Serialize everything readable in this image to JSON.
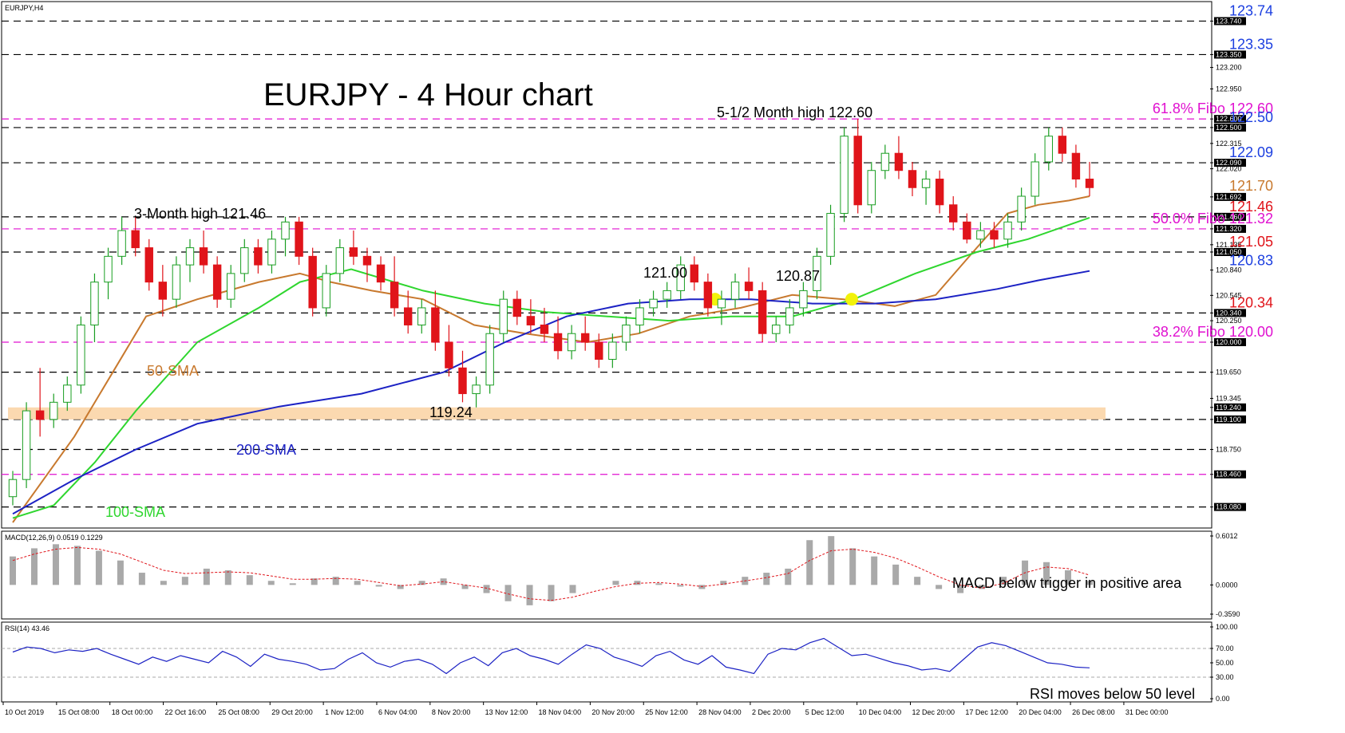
{
  "symbol_label": "EURJPY,H4",
  "title": "EURJPY - 4 Hour chart",
  "colors": {
    "bull": "#1a9e22",
    "bear": "#e0141a",
    "sma50": "#c8792e",
    "sma100": "#2fd62f",
    "sma200": "#1c22c4",
    "fibo": "#e010d0",
    "support_zone": "#fbd9b0",
    "red_label": "#e0141a",
    "blue_label": "#1c3fe0",
    "magenta_label": "#e010d0",
    "brown_label": "#c8792e",
    "highlight": "#f2f20a"
  },
  "chart_data": [
    {
      "type": "candlestick",
      "panel": "price",
      "ylim": [
        117.9,
        123.8
      ],
      "axis_ticks": [
        "123.740",
        "123.350",
        "123.200",
        "122.950",
        "122.600",
        "122.500",
        "122.315",
        "122.090",
        "122.020",
        "121.692",
        "121.460",
        "121.320",
        "121.135",
        "121.050",
        "120.840",
        "120.545",
        "120.340",
        "120.250",
        "120.000",
        "119.650",
        "119.345",
        "119.240",
        "119.100",
        "118.750",
        "118.460",
        "118.080"
      ],
      "horizontal_levels": [
        {
          "value": 123.74,
          "label": "123.74",
          "style": "black-dashed",
          "label_color": "blue"
        },
        {
          "value": 123.35,
          "label": "123.35",
          "style": "black-dashed",
          "label_color": "blue"
        },
        {
          "value": 122.6,
          "label": "61.8% Fibo 122.60",
          "style": "fibo-dashed",
          "label_color": "magenta"
        },
        {
          "value": 122.5,
          "label": "122.50",
          "style": "black-dashed",
          "label_color": "blue"
        },
        {
          "value": 122.09,
          "label": "122.09",
          "style": "black-dashed",
          "label_color": "blue"
        },
        {
          "value": 121.7,
          "label": "121.70",
          "style": "none",
          "label_color": "brown"
        },
        {
          "value": 121.46,
          "label": "121.46",
          "style": "black-dashed",
          "label_color": "red"
        },
        {
          "value": 121.32,
          "label": "50.0% Fibo 121.32",
          "style": "fibo-dashed",
          "label_color": "magenta"
        },
        {
          "value": 121.05,
          "label": "121.05",
          "style": "black-dashed",
          "label_color": "red"
        },
        {
          "value": 120.83,
          "label": "120.83",
          "style": "none",
          "label_color": "blue"
        },
        {
          "value": 120.34,
          "label": "120.34",
          "style": "black-dashed",
          "label_color": "red"
        },
        {
          "value": 120.0,
          "label": "38.2% Fibo 120.00",
          "style": "fibo-dashed",
          "label_color": "magenta"
        },
        {
          "value": 119.65,
          "label": "",
          "style": "black-dashed",
          "label_color": "none"
        },
        {
          "value": 119.1,
          "label": "",
          "style": "black-dashed",
          "label_color": "none"
        },
        {
          "value": 118.75,
          "label": "",
          "style": "black-dashed",
          "label_color": "none"
        },
        {
          "value": 118.46,
          "label": "",
          "style": "fibo-dashed",
          "label_color": "none"
        },
        {
          "value": 118.08,
          "label": "",
          "style": "black-dashed",
          "label_color": "none"
        }
      ],
      "support_zone": [
        119.1,
        119.24
      ],
      "highlight_labels": [
        "122.600",
        "122.500",
        "122.090",
        "121.692",
        "121.460",
        "121.320",
        "121.050",
        "120.340",
        "120.000",
        "119.240",
        "119.100",
        "118.460",
        "118.080",
        "123.740",
        "123.350"
      ],
      "annotations": [
        {
          "text": "5-1/2 Month high 122.60"
        },
        {
          "text": "3-Month high 121.46"
        },
        {
          "text": "121.00"
        },
        {
          "text": "120.87"
        },
        {
          "text": "119.24"
        },
        {
          "text": "50-SMA"
        },
        {
          "text": "100-SMA"
        },
        {
          "text": "200-SMA"
        }
      ],
      "sma_anchors": {
        "sma50": [
          [
            0,
            117.9
          ],
          [
            6,
            118.9
          ],
          [
            10,
            119.7
          ],
          [
            13,
            120.3
          ],
          [
            18,
            120.5
          ],
          [
            24,
            120.7
          ],
          [
            28,
            120.8
          ],
          [
            31,
            120.7
          ],
          [
            35,
            120.6
          ],
          [
            40,
            120.5
          ],
          [
            45,
            120.2
          ],
          [
            50,
            120.1
          ],
          [
            56,
            120.0
          ],
          [
            61,
            120.1
          ],
          [
            66,
            120.3
          ],
          [
            71,
            120.4
          ],
          [
            76,
            120.55
          ],
          [
            81,
            120.5
          ],
          [
            86,
            120.42
          ],
          [
            90,
            120.55
          ],
          [
            94,
            121.1
          ],
          [
            97,
            121.5
          ],
          [
            100,
            121.6
          ],
          [
            103,
            121.65
          ],
          [
            105,
            121.7
          ]
        ],
        "sma100": [
          [
            0,
            117.95
          ],
          [
            4,
            118.1
          ],
          [
            8,
            118.6
          ],
          [
            12,
            119.2
          ],
          [
            18,
            120.0
          ],
          [
            24,
            120.4
          ],
          [
            28,
            120.7
          ],
          [
            33,
            120.85
          ],
          [
            40,
            120.6
          ],
          [
            46,
            120.45
          ],
          [
            52,
            120.35
          ],
          [
            58,
            120.3
          ],
          [
            64,
            120.25
          ],
          [
            70,
            120.3
          ],
          [
            76,
            120.3
          ],
          [
            82,
            120.5
          ],
          [
            88,
            120.8
          ],
          [
            94,
            121.05
          ],
          [
            99,
            121.2
          ],
          [
            105,
            121.45
          ]
        ],
        "sma200": [
          [
            0,
            118.0
          ],
          [
            6,
            118.4
          ],
          [
            12,
            118.75
          ],
          [
            18,
            119.05
          ],
          [
            26,
            119.25
          ],
          [
            34,
            119.4
          ],
          [
            42,
            119.65
          ],
          [
            48,
            120.0
          ],
          [
            54,
            120.3
          ],
          [
            60,
            120.45
          ],
          [
            66,
            120.5
          ],
          [
            72,
            120.5
          ],
          [
            78,
            120.45
          ],
          [
            84,
            120.45
          ],
          [
            90,
            120.5
          ],
          [
            96,
            120.62
          ],
          [
            100,
            120.72
          ],
          [
            105,
            120.83
          ]
        ]
      },
      "ohlc": [
        [
          118.2,
          118.5,
          118.1,
          118.4
        ],
        [
          118.4,
          119.3,
          118.3,
          119.2
        ],
        [
          119.2,
          119.7,
          118.9,
          119.1
        ],
        [
          119.1,
          119.4,
          119.0,
          119.3
        ],
        [
          119.3,
          119.6,
          119.2,
          119.5
        ],
        [
          119.5,
          120.3,
          119.4,
          120.2
        ],
        [
          120.2,
          120.8,
          120.0,
          120.7
        ],
        [
          120.7,
          121.1,
          120.5,
          121.0
        ],
        [
          121.0,
          121.46,
          120.9,
          121.3
        ],
        [
          121.3,
          121.46,
          121.0,
          121.1
        ],
        [
          121.1,
          121.2,
          120.6,
          120.7
        ],
        [
          120.7,
          120.9,
          120.3,
          120.5
        ],
        [
          120.5,
          121.0,
          120.4,
          120.9
        ],
        [
          120.9,
          121.2,
          120.7,
          121.1
        ],
        [
          121.1,
          121.3,
          120.8,
          120.9
        ],
        [
          120.9,
          121.0,
          120.4,
          120.5
        ],
        [
          120.5,
          120.9,
          120.4,
          120.8
        ],
        [
          120.8,
          121.2,
          120.7,
          121.1
        ],
        [
          121.1,
          121.2,
          120.8,
          120.9
        ],
        [
          120.9,
          121.3,
          120.8,
          121.2
        ],
        [
          121.2,
          121.46,
          121.0,
          121.4
        ],
        [
          121.4,
          121.46,
          120.9,
          121.0
        ],
        [
          121.0,
          121.1,
          120.3,
          120.4
        ],
        [
          120.4,
          120.9,
          120.3,
          120.8
        ],
        [
          120.8,
          121.2,
          120.7,
          121.1
        ],
        [
          121.1,
          121.3,
          120.9,
          121.0
        ],
        [
          121.0,
          121.1,
          120.7,
          120.9
        ],
        [
          120.9,
          121.0,
          120.6,
          120.7
        ],
        [
          120.7,
          121.0,
          120.3,
          120.4
        ],
        [
          120.4,
          120.6,
          120.1,
          120.2
        ],
        [
          120.2,
          120.5,
          120.1,
          120.4
        ],
        [
          120.4,
          120.6,
          119.9,
          120.0
        ],
        [
          120.0,
          120.2,
          119.6,
          119.7
        ],
        [
          119.7,
          119.9,
          119.3,
          119.4
        ],
        [
          119.4,
          119.6,
          119.24,
          119.5
        ],
        [
          119.5,
          120.2,
          119.4,
          120.1
        ],
        [
          120.1,
          120.6,
          120.0,
          120.5
        ],
        [
          120.5,
          120.6,
          120.2,
          120.3
        ],
        [
          120.3,
          120.5,
          120.1,
          120.2
        ],
        [
          120.2,
          120.4,
          120.0,
          120.1
        ],
        [
          120.1,
          120.3,
          119.8,
          119.9
        ],
        [
          119.9,
          120.2,
          119.8,
          120.1
        ],
        [
          120.1,
          120.3,
          119.9,
          120.0
        ],
        [
          120.0,
          120.1,
          119.7,
          119.8
        ],
        [
          119.8,
          120.1,
          119.7,
          120.0
        ],
        [
          120.0,
          120.3,
          119.9,
          120.2
        ],
        [
          120.2,
          120.5,
          120.1,
          120.4
        ],
        [
          120.4,
          120.6,
          120.3,
          120.5
        ],
        [
          120.5,
          120.7,
          120.4,
          120.6
        ],
        [
          120.6,
          121.0,
          120.5,
          120.9
        ],
        [
          120.9,
          121.0,
          120.6,
          120.7
        ],
        [
          120.7,
          120.8,
          120.3,
          120.4
        ],
        [
          120.4,
          120.6,
          120.2,
          120.5
        ],
        [
          120.5,
          120.8,
          120.4,
          120.7
        ],
        [
          120.7,
          120.87,
          120.5,
          120.6
        ],
        [
          120.6,
          120.7,
          120.0,
          120.1
        ],
        [
          120.1,
          120.3,
          120.0,
          120.2
        ],
        [
          120.2,
          120.5,
          120.1,
          120.4
        ],
        [
          120.4,
          120.7,
          120.3,
          120.6
        ],
        [
          120.6,
          121.1,
          120.5,
          121.0
        ],
        [
          121.0,
          121.6,
          120.9,
          121.5
        ],
        [
          121.5,
          122.5,
          121.4,
          122.4
        ],
        [
          122.4,
          122.6,
          121.5,
          121.6
        ],
        [
          121.6,
          122.1,
          121.5,
          122.0
        ],
        [
          122.0,
          122.3,
          121.9,
          122.2
        ],
        [
          122.2,
          122.4,
          121.9,
          122.0
        ],
        [
          122.0,
          122.1,
          121.7,
          121.8
        ],
        [
          121.8,
          122.0,
          121.6,
          121.9
        ],
        [
          121.9,
          122.0,
          121.5,
          121.6
        ],
        [
          121.6,
          121.7,
          121.3,
          121.4
        ],
        [
          121.4,
          121.5,
          121.15,
          121.2
        ],
        [
          121.2,
          121.4,
          121.1,
          121.3
        ],
        [
          121.3,
          121.4,
          121.1,
          121.2
        ],
        [
          121.2,
          121.5,
          121.1,
          121.4
        ],
        [
          121.4,
          121.8,
          121.3,
          121.7
        ],
        [
          121.7,
          122.2,
          121.6,
          122.1
        ],
        [
          122.1,
          122.5,
          122.0,
          122.4
        ],
        [
          122.4,
          122.5,
          122.1,
          122.2
        ],
        [
          122.2,
          122.3,
          121.8,
          121.9
        ],
        [
          121.9,
          122.1,
          121.7,
          121.8
        ]
      ],
      "x_ticks": [
        "10 Oct 2019",
        "15 Oct 08:00",
        "18 Oct 00:00",
        "22 Oct 16:00",
        "25 Oct 08:00",
        "29 Oct 20:00",
        "1 Nov 12:00",
        "6 Nov 04:00",
        "8 Nov 20:00",
        "13 Nov 12:00",
        "18 Nov 04:00",
        "20 Nov 20:00",
        "25 Nov 12:00",
        "28 Nov 04:00",
        "2 Dec 20:00",
        "5 Dec 12:00",
        "10 Dec 04:00",
        "12 Dec 20:00",
        "17 Dec 12:00",
        "20 Dec 04:00",
        "26 Dec 08:00",
        "31 Dec 00:00"
      ]
    },
    {
      "type": "bar",
      "panel": "macd",
      "title": "MACD(12,26,9) 0.0519 0.1229",
      "ylim": [
        -0.359,
        0.6012
      ],
      "axis_ticks": [
        "0.6012",
        "0.0000",
        "-0.3590"
      ],
      "annotation": "MACD below trigger in positive area",
      "series": [
        {
          "name": "MACD",
          "values": [
            0.35,
            0.45,
            0.5,
            0.48,
            0.42,
            0.3,
            0.15,
            0.05,
            0.1,
            0.2,
            0.18,
            0.12,
            0.05,
            0.02,
            0.08,
            0.1,
            0.05,
            -0.02,
            -0.05,
            0.05,
            0.08,
            -0.05,
            -0.1,
            -0.2,
            -0.25,
            -0.2,
            -0.1,
            0.0,
            0.05,
            0.05,
            0.02,
            -0.02,
            -0.05,
            0.05,
            0.1,
            0.15,
            0.2,
            0.55,
            0.6,
            0.45,
            0.35,
            0.25,
            0.1,
            -0.05,
            -0.1,
            -0.05,
            0.1,
            0.3,
            0.28,
            0.18,
            0.05
          ]
        },
        {
          "name": "signal",
          "values": [
            0.3,
            0.38,
            0.44,
            0.46,
            0.44,
            0.38,
            0.28,
            0.18,
            0.14,
            0.15,
            0.16,
            0.15,
            0.11,
            0.07,
            0.07,
            0.08,
            0.07,
            0.03,
            -0.01,
            0.01,
            0.04,
            0.0,
            -0.04,
            -0.11,
            -0.17,
            -0.19,
            -0.15,
            -0.08,
            -0.02,
            0.02,
            0.03,
            0.01,
            -0.02,
            0.01,
            0.05,
            0.09,
            0.14,
            0.3,
            0.42,
            0.44,
            0.4,
            0.33,
            0.22,
            0.1,
            0.0,
            -0.04,
            0.02,
            0.15,
            0.22,
            0.2,
            0.12
          ]
        }
      ]
    },
    {
      "type": "line",
      "panel": "rsi",
      "title": "RSI(14) 43.46",
      "ylim": [
        0,
        100
      ],
      "axis_ticks": [
        "100.00",
        "70.00",
        "50.00",
        "30.00",
        "0.00"
      ],
      "levels": [
        70,
        30
      ],
      "annotation": "RSI moves below 50 level",
      "series": [
        {
          "name": "RSI",
          "values": [
            65,
            72,
            70,
            64,
            68,
            66,
            70,
            62,
            55,
            48,
            58,
            52,
            60,
            55,
            50,
            66,
            58,
            45,
            62,
            55,
            52,
            48,
            40,
            42,
            55,
            64,
            50,
            44,
            52,
            55,
            48,
            35,
            50,
            58,
            46,
            64,
            70,
            60,
            55,
            48,
            62,
            75,
            70,
            58,
            52,
            45,
            60,
            66,
            54,
            48,
            60,
            44,
            40,
            35,
            62,
            70,
            68,
            78,
            84,
            72,
            60,
            62,
            56,
            50,
            46,
            40,
            42,
            38,
            55,
            72,
            78,
            74,
            66,
            58,
            50,
            48,
            44,
            43
          ]
        }
      ]
    }
  ]
}
